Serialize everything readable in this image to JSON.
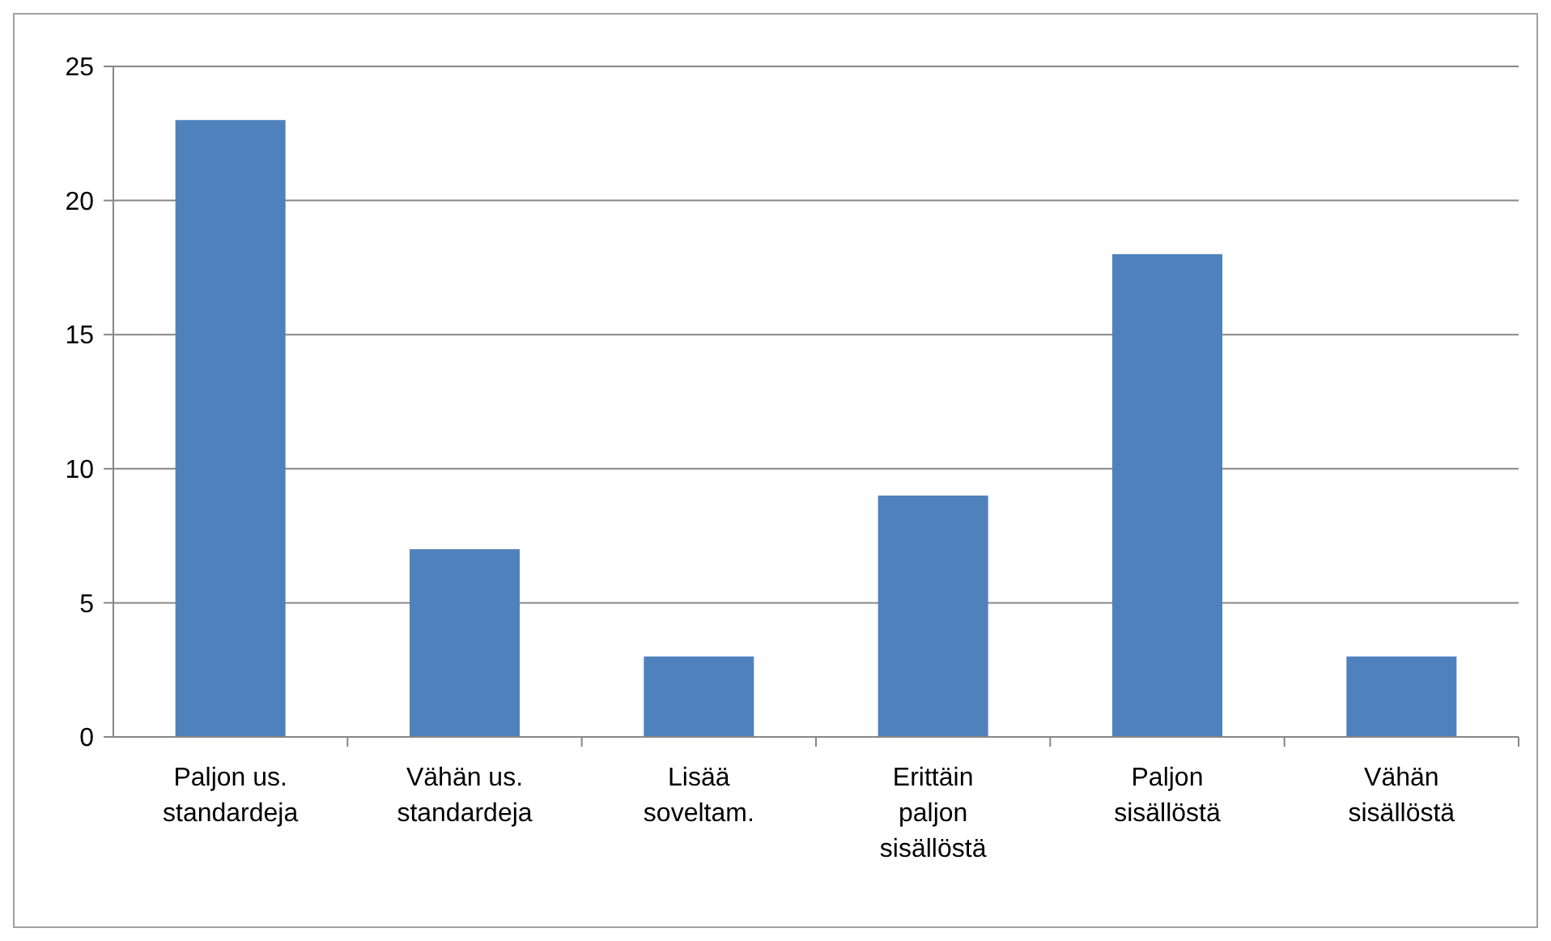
{
  "chart_data": {
    "type": "bar",
    "categories": [
      "Paljon us. standardeja",
      "Vähän us. standardeja",
      "Lisää soveltam.",
      "Erittäin paljon sisällöstä",
      "Paljon sisällöstä",
      "Vähän sisällöstä"
    ],
    "values": [
      23,
      7,
      3,
      9,
      18,
      3
    ],
    "color": "#4f81bd",
    "ylim": [
      0,
      25
    ],
    "yticks": [
      0,
      5,
      10,
      15,
      20,
      25
    ],
    "grid": "y"
  }
}
